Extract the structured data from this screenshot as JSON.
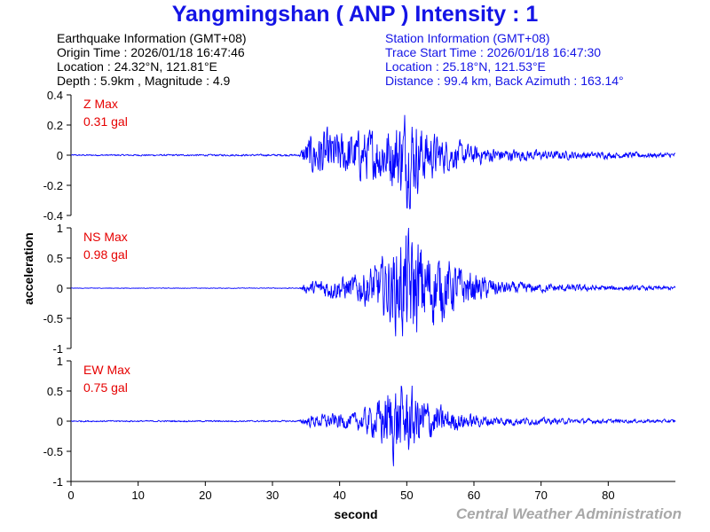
{
  "title": "Yangmingshan ( ANP ) Intensity : 1",
  "earthquake_info": {
    "header": "Earthquake Information (GMT+08)",
    "origin_time": "Origin Time : 2026/01/18 16:47:46",
    "location": "Location : 24.32°N, 121.81°E",
    "depth_magnitude": "Depth : 5.9km , Magnitude : 4.9"
  },
  "station_info": {
    "header": "Station Information (GMT+08)",
    "trace_start": "Trace Start Time : 2026/01/18 16:47:30",
    "location": "Location : 25.18°N, 121.53°E",
    "distance_azimuth": "Distance : 99.4 km, Back Azimuth : 163.14°"
  },
  "ylabel": "acceleration",
  "xlabel": "second",
  "credit": "Central Weather Administration",
  "colors": {
    "title": "#1414e6",
    "trace": "#0000ff",
    "max_label": "#e60000",
    "credit": "#a8a8a8"
  },
  "chart_data": [
    {
      "type": "line",
      "component": "Z",
      "max_label": "Z Max",
      "max_value": "0.31 gal",
      "xlim": [
        0,
        90
      ],
      "ylim": [
        -0.4,
        0.4
      ],
      "yticks": [
        0.4,
        0.2,
        0,
        -0.2,
        -0.4
      ],
      "ytick_labels": [
        "0.4",
        "0.2",
        "0",
        "-0.2",
        "-0.4"
      ],
      "xticks": [
        0,
        10,
        20,
        30,
        40,
        50,
        60,
        70,
        80
      ],
      "envelope": {
        "t": [
          0,
          34,
          35,
          37,
          40,
          45,
          48,
          50,
          53,
          56,
          60,
          65,
          70,
          80,
          90
        ],
        "amp": [
          0.004,
          0.006,
          0.1,
          0.16,
          0.14,
          0.16,
          0.2,
          0.3,
          0.16,
          0.1,
          0.06,
          0.04,
          0.03,
          0.02,
          0.015
        ]
      }
    },
    {
      "type": "line",
      "component": "NS",
      "max_label": "NS Max",
      "max_value": "0.98 gal",
      "xlim": [
        0,
        90
      ],
      "ylim": [
        -1,
        1
      ],
      "yticks": [
        1,
        0.5,
        0,
        -0.5,
        -1
      ],
      "ytick_labels": [
        "1",
        "0.5",
        "0",
        "-0.5",
        "-1"
      ],
      "xticks": [
        0,
        10,
        20,
        30,
        40,
        50,
        60,
        70,
        80
      ],
      "envelope": {
        "t": [
          0,
          34,
          35,
          38,
          42,
          45,
          47,
          50,
          53,
          56,
          60,
          65,
          70,
          80,
          90
        ],
        "amp": [
          0.004,
          0.006,
          0.08,
          0.16,
          0.2,
          0.35,
          0.5,
          0.9,
          0.65,
          0.45,
          0.22,
          0.1,
          0.07,
          0.04,
          0.03
        ]
      }
    },
    {
      "type": "line",
      "component": "EW",
      "max_label": "EW Max",
      "max_value": "0.75 gal",
      "xlim": [
        0,
        90
      ],
      "ylim": [
        -1,
        1
      ],
      "yticks": [
        1,
        0.5,
        0,
        -0.5,
        -1
      ],
      "ytick_labels": [
        "1",
        "0.5",
        "0",
        "-0.5",
        "-1"
      ],
      "xticks": [
        0,
        10,
        20,
        30,
        40,
        50,
        60,
        70,
        80
      ],
      "envelope": {
        "t": [
          0,
          34,
          35,
          38,
          42,
          45,
          48,
          50,
          53,
          56,
          60,
          65,
          70,
          80,
          90
        ],
        "amp": [
          0.01,
          0.012,
          0.08,
          0.12,
          0.12,
          0.25,
          0.6,
          0.55,
          0.35,
          0.18,
          0.1,
          0.07,
          0.05,
          0.03,
          0.025
        ]
      }
    }
  ]
}
